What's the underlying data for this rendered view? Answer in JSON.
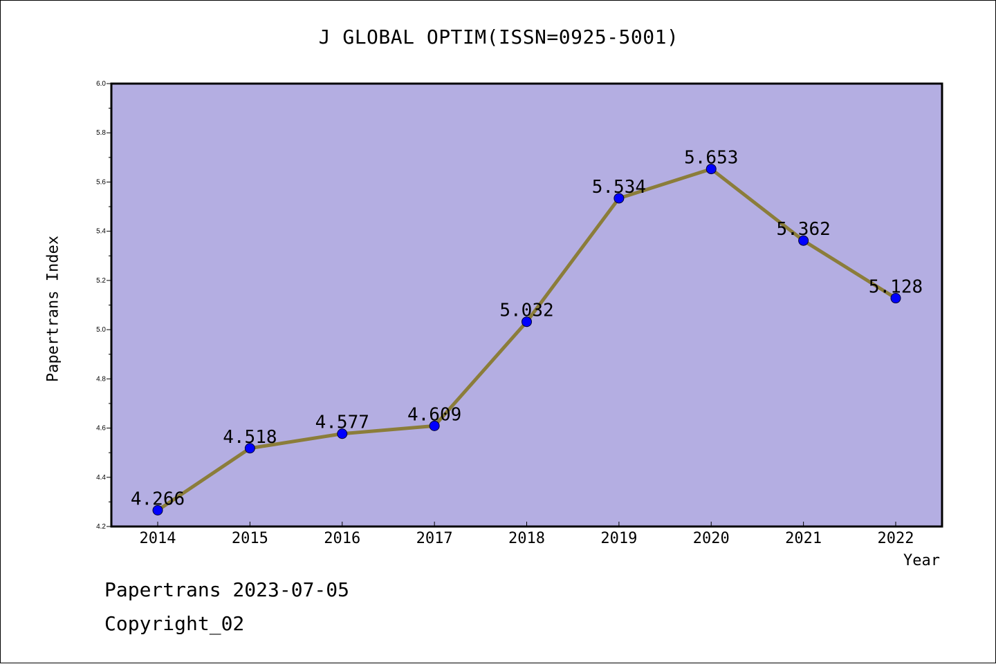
{
  "chart_data": {
    "type": "line",
    "title": "J GLOBAL OPTIM(ISSN=0925-5001)",
    "xlabel": "Year",
    "ylabel": "Papertrans Index",
    "categories": [
      "2014",
      "2015",
      "2016",
      "2017",
      "2018",
      "2019",
      "2020",
      "2021",
      "2022"
    ],
    "series": [
      {
        "values": [
          4.266,
          4.518,
          4.577,
          4.609,
          5.032,
          5.534,
          5.653,
          5.362,
          5.128
        ],
        "labels": [
          "4.266",
          "4.518",
          "4.577",
          "4.609",
          "5.032",
          "5.534",
          "5.653",
          "5.362",
          "5.128"
        ]
      }
    ],
    "ylim": [
      4.2,
      6.0
    ],
    "yticks": [
      "4.2",
      "4.4",
      "4.6",
      "4.8",
      "5.0",
      "5.2",
      "5.4",
      "5.6",
      "5.8",
      "6.0"
    ],
    "grid": false,
    "colors": {
      "plot_background": "#b4aee2",
      "line": "#8b7d3a",
      "marker": "#0000ff"
    }
  },
  "footer": {
    "line1": "Papertrans 2023-07-05",
    "line2": "Copyright_02"
  }
}
